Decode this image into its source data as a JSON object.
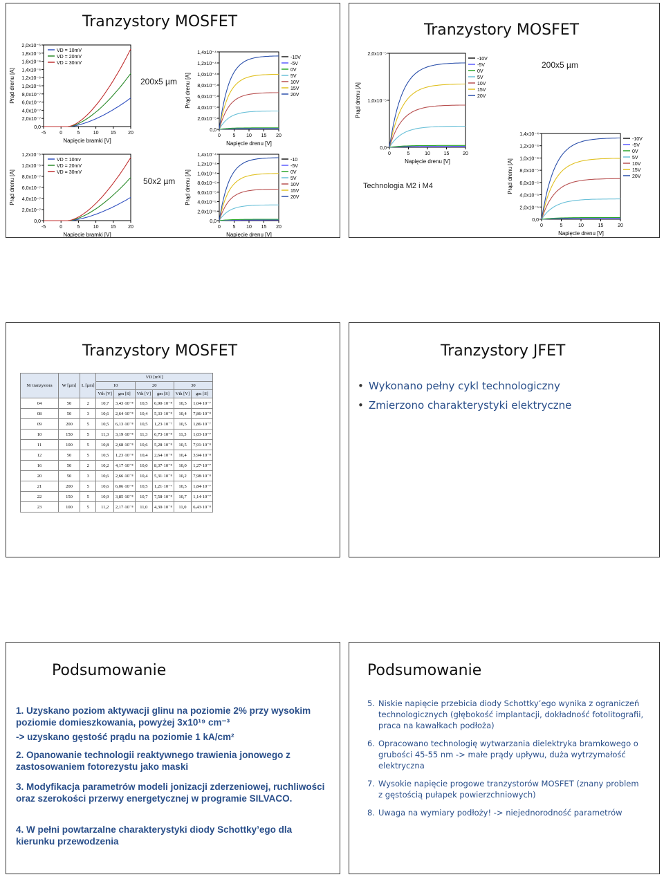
{
  "slides": [
    {
      "title": "Tranzystory MOSFET",
      "label_top": "200x5 µm",
      "label_bottom": "50x2 µm"
    },
    {
      "title": "Tranzystory MOSFET",
      "label": "200x5 µm",
      "technology": "Technologia M2 i M4"
    },
    {
      "title": "Tranzystory MOSFET"
    },
    {
      "title": "Tranzystory JFET",
      "bullets": [
        "Wykonano pełny cykl technologiczny",
        "Zmierzono charakterystyki elektryczne"
      ]
    },
    {
      "title": "Podsumowanie",
      "items": [
        "1. Uzyskano poziom aktywacji glinu na poziomie 2% przy wysokim poziomie domieszkowania, powyżej 3x10¹⁹ cm⁻³",
        "-> uzyskano gęstość prądu na poziomie 1 kA/cm²",
        "2. Opanowanie technologii reaktywnego trawienia jonowego z zastosowaniem fotorezystu jako maski",
        "3. Modyfikacja parametrów modeli jonizacji zderzeniowej, ruchliwości oraz szerokości przerwy energetycznej w programie SILVACO.",
        "4. W pełni powtarzalne charakterystyki diody Schottky’ego dla kierunku przewodzenia"
      ]
    },
    {
      "title": "Podsumowanie",
      "items": [
        {
          "num": "5.",
          "text": "Niskie napięcie przebicia diody Schottky’ego wynika z ograniczeń technologicznych (głębokość implantacji, dokładność fotolitografii, praca na kawałkach podłoża)"
        },
        {
          "num": "6.",
          "text": "Opracowano technologię wytwarzania dielektryka bramkowego o grubości 45-55 nm -> małe prądy upływu, duża wytrzymałość elektryczna"
        },
        {
          "num": "7.",
          "text": "Wysokie napięcie progowe tranzystorów MOSFET (znany problem z gęstością pułapek powierzchniowych)"
        },
        {
          "num": "8.",
          "text": "Uwaga na wymiary podłoży! -> niejednorodność parametrów"
        }
      ]
    }
  ],
  "table": {
    "col_nr": "Nr tranzystora",
    "col_w": "W [µm]",
    "col_l": "L [µm]",
    "vd_header": "VD [mV]",
    "vd_values": [
      "10",
      "20",
      "30"
    ],
    "sub_headers": [
      "Vth [V]",
      "gm [S]",
      "Vth [V]",
      "gm [S]",
      "Vth [V]",
      "gm [S]"
    ],
    "rows": [
      [
        "04",
        "50",
        "2",
        "10,7",
        "3,43·10⁻⁸",
        "10,5",
        "6,90·10⁻⁸",
        "10,5",
        "1,04·10⁻⁷"
      ],
      [
        "08",
        "50",
        "3",
        "10,6",
        "2,64·10⁻⁸",
        "10,4",
        "5,33·10⁻⁸",
        "10,4",
        "7,86·10⁻⁸"
      ],
      [
        "09",
        "200",
        "5",
        "10,5",
        "6,13·10⁻⁸",
        "10,5",
        "1,23·10⁻⁷",
        "10,5",
        "1,86·10⁻⁷"
      ],
      [
        "10",
        "150",
        "5",
        "11,3",
        "3,19·10⁻⁸",
        "11,3",
        "6,73·10⁻⁸",
        "11,3",
        "1,03·10⁻⁷"
      ],
      [
        "11",
        "100",
        "5",
        "10,8",
        "2,68·10⁻⁸",
        "10,6",
        "5,28·10⁻⁸",
        "10,5",
        "7,91·10⁻⁸"
      ],
      [
        "12",
        "50",
        "5",
        "10,5",
        "1,23·10⁻⁸",
        "10,4",
        "2,64·10⁻⁸",
        "10,4",
        "3,94·10⁻⁸"
      ],
      [
        "16",
        "50",
        "2",
        "10,2",
        "4,17·10⁻⁸",
        "10,0",
        "8,37·10⁻⁸",
        "10,0",
        "1,27·10⁻⁷"
      ],
      [
        "20",
        "50",
        "3",
        "10,6",
        "2,66·10⁻⁸",
        "10,4",
        "5,31·10⁻⁸",
        "10,2",
        "7,98·10⁻⁸"
      ],
      [
        "21",
        "200",
        "5",
        "10,6",
        "6,06·10⁻⁸",
        "10,5",
        "1,21·10⁻⁷",
        "10,5",
        "1,84·10⁻⁷"
      ],
      [
        "22",
        "150",
        "5",
        "10,9",
        "3,85·10⁻⁸",
        "10,7",
        "7,58·10⁻⁸",
        "10,7",
        "1,14·10⁻⁷"
      ],
      [
        "23",
        "100",
        "5",
        "11,2",
        "2,17·10⁻⁸",
        "11,0",
        "4,30·10⁻⁸",
        "11,0",
        "6,43·10⁻⁸"
      ]
    ]
  },
  "colors": {
    "blue": "#2a4f8a",
    "hdr_bg": "#dfe7f3"
  },
  "chart_data": [
    {
      "type": "line",
      "id": "transfer-200x5",
      "xlabel": "Napięcie bramki [V]",
      "ylabel": "Prąd drenu [A]",
      "xticks": [
        "-5",
        "0",
        "5",
        "10",
        "15",
        "20"
      ],
      "yticks": [
        "0,0",
        "2,0x10⁻⁷",
        "4,0x10⁻⁷",
        "6,0x10⁻⁷",
        "8,0x10⁻⁷",
        "1,0x10⁻⁶",
        "1,2x10⁻⁶",
        "1,4x10⁻⁶",
        "1,6x10⁻⁶",
        "1,8x10⁻⁶",
        "2,0x10⁻⁶"
      ],
      "legend": [
        "VD = 10mV",
        "VD = 20mV",
        "VD = 30mV"
      ]
    },
    {
      "type": "line",
      "id": "output-200x5-a",
      "xlabel": "Napięcie drenu [V]",
      "ylabel": "Prąd drenu [A]",
      "xticks": [
        "0",
        "5",
        "10",
        "15",
        "20"
      ],
      "yticks": [
        "0,0",
        "2,0x10⁻⁵",
        "4,0x10⁻⁵",
        "6,0x10⁻⁵",
        "8,0x10⁻⁵",
        "1,0x10⁻⁴",
        "1,2x10⁻⁴",
        "1,4x10⁻⁴"
      ],
      "legend": [
        "-10V",
        "-5V",
        "0V",
        "5V",
        "10V",
        "15V",
        "20V"
      ]
    },
    {
      "type": "line",
      "id": "transfer-50x2",
      "xlabel": "Napięcie bramki [V]",
      "ylabel": "Prąd drenu [A]",
      "xticks": [
        "-5",
        "0",
        "5",
        "10",
        "15",
        "20"
      ],
      "yticks": [
        "0,0",
        "2,0x10⁻⁷",
        "4,0x10⁻⁷",
        "6,0x10⁻⁷",
        "8,0x10⁻⁷",
        "1,0x10⁻⁶",
        "1,2x10⁻⁶"
      ],
      "legend": [
        "VD = 10mv",
        "VD = 20mV",
        "VD = 30mV"
      ]
    },
    {
      "type": "line",
      "id": "output-50x2",
      "xlabel": "Napięcie drenu [V]",
      "ylabel": "Prąd drenu [A]",
      "xticks": [
        "0",
        "5",
        "10",
        "15",
        "20"
      ],
      "yticks": [
        "0,0",
        "2,0x10⁻⁵",
        "4,0x10⁻⁵",
        "6,0x10⁻⁵",
        "8,0x10⁻⁵",
        "1,0x10⁻⁴",
        "1,2x10⁻⁴",
        "1,4x10⁻⁴"
      ],
      "legend": [
        "-10",
        "-5V",
        "0V",
        "5V",
        "10V",
        "15V",
        "20V"
      ]
    },
    {
      "type": "line",
      "id": "output-200x5-m2",
      "xlabel": "Napięcie drenu [V]",
      "ylabel": "Prąd drenu [A]",
      "xticks": [
        "0",
        "5",
        "10",
        "15",
        "20"
      ],
      "yticks": [
        "0,0",
        "1,0x10⁻⁵",
        "2,0x10⁻⁵"
      ],
      "legend": [
        "-10V",
        "-5V",
        "0V",
        "5V",
        "10V",
        "15V",
        "20V"
      ]
    },
    {
      "type": "line",
      "id": "output-m4",
      "xlabel": "Napięcie drenu [V]",
      "ylabel": "Prąd drenu [A]",
      "xticks": [
        "0",
        "5",
        "10",
        "15",
        "20"
      ],
      "yticks": [
        "0,0",
        "2,0x10⁻⁵",
        "4,0x10⁻⁵",
        "6,0x10⁻⁵",
        "8,0x10⁻⁵",
        "1,0x10⁻⁴",
        "1,2x10⁻⁴",
        "1,4x10⁻⁴"
      ],
      "legend": [
        "-10V",
        "-5V",
        "0V",
        "5V",
        "10V",
        "15V",
        "20V"
      ]
    }
  ]
}
